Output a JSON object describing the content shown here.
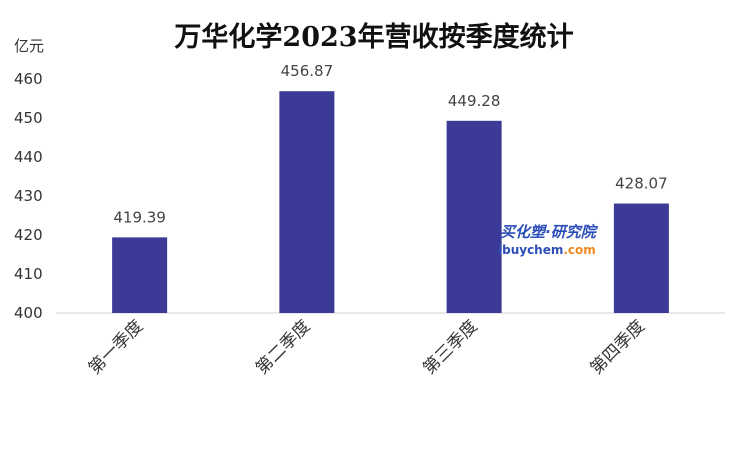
{
  "chart_data": {
    "type": "bar",
    "title": "万华化学2023年营收按季度统计",
    "ylabel": "亿元",
    "categories": [
      "第一季度",
      "第二季度",
      "第三季度",
      "第四季度"
    ],
    "values": [
      419.39,
      456.87,
      449.28,
      428.07
    ],
    "value_labels": [
      "419.39",
      "456.87",
      "449.28",
      "428.07"
    ],
    "ylim": [
      400,
      460
    ],
    "yticks": [
      400,
      410,
      420,
      430,
      440,
      450,
      460
    ],
    "grid": false,
    "legend": "none",
    "bar_color": "#3b3a96"
  },
  "watermark": {
    "line1": "买化塑·研究院",
    "line2_part1": "ibuychem",
    "line2_part2": ".com",
    "color_blue": "#2b4eb8",
    "color_orange": "#f08a24"
  }
}
